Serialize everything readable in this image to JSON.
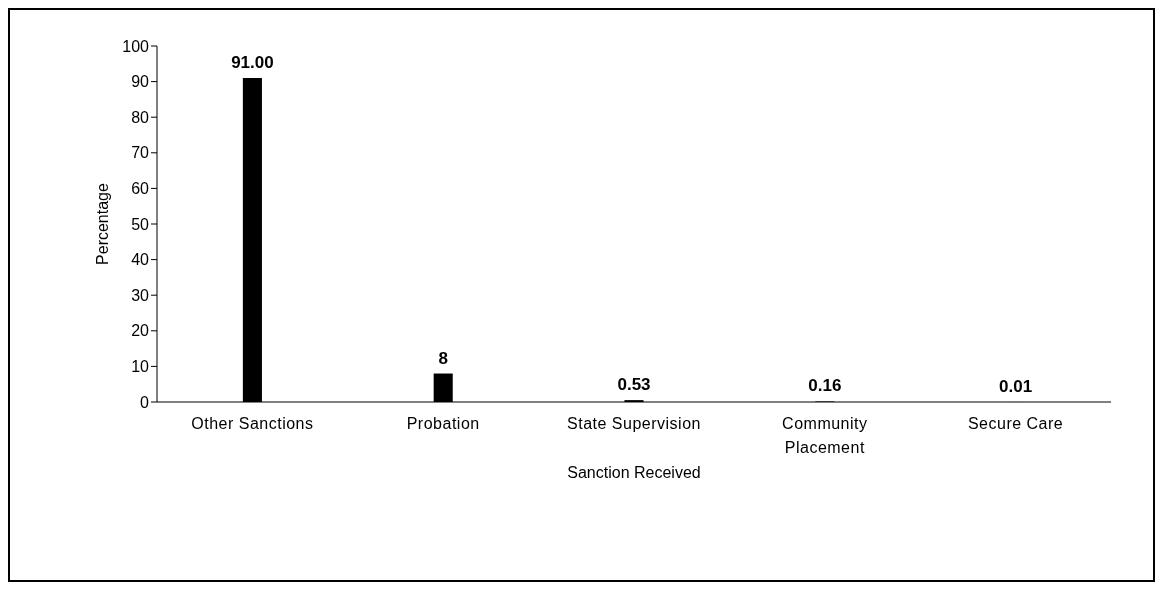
{
  "chart_data": {
    "type": "bar",
    "xlabel": "Sanction Received",
    "ylabel": "Percentage",
    "categories": [
      "Other Sanctions",
      "Probation",
      "State Supervision",
      "Community Placement",
      "Secure Care"
    ],
    "values": [
      91.0,
      8,
      0.53,
      0.16,
      0.01
    ],
    "value_labels": [
      "91.00",
      "8",
      "0.53",
      "0.16",
      "0.01"
    ],
    "color": "#000000",
    "ylim": [
      0,
      100
    ],
    "yticks": [
      0,
      10,
      20,
      30,
      40,
      50,
      60,
      70,
      80,
      90,
      100
    ],
    "grid": false,
    "legend": false
  }
}
